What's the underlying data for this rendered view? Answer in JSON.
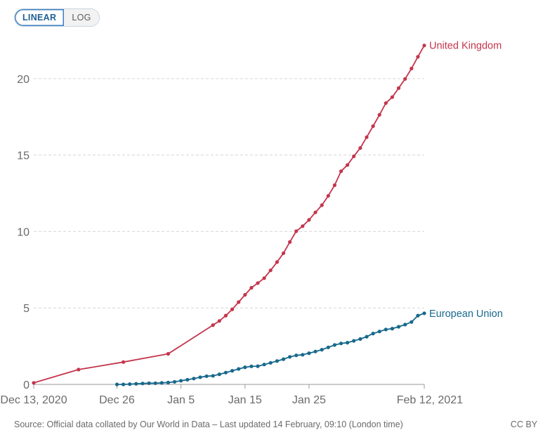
{
  "controls": {
    "linear_label": "LINEAR",
    "log_label": "LOG",
    "active": "linear"
  },
  "chart_data": {
    "type": "line",
    "title": "",
    "xlabel": "",
    "ylabel": "",
    "scale": "linear",
    "grid": "horizontal dashed",
    "ylim": [
      0,
      22.2
    ],
    "yticks": [
      0,
      5,
      10,
      15,
      20
    ],
    "xlim": [
      "2020-12-13",
      "2021-02-12"
    ],
    "xticks": [
      {
        "date": "2020-12-13",
        "label": "Dec 13, 2020"
      },
      {
        "date": "2020-12-26",
        "label": "Dec 26"
      },
      {
        "date": "2021-01-05",
        "label": "Jan 5"
      },
      {
        "date": "2021-01-15",
        "label": "Jan 15"
      },
      {
        "date": "2021-01-25",
        "label": "Jan 25"
      },
      {
        "date": "2021-02-12",
        "label": "Feb 12, 2021"
      }
    ],
    "series": [
      {
        "name": "United Kingdom",
        "color": "#c4354c",
        "points": [
          [
            "2020-12-13",
            0.1
          ],
          [
            "2020-12-20",
            0.97
          ],
          [
            "2020-12-27",
            1.46
          ],
          [
            "2021-01-03",
            2.0
          ],
          [
            "2021-01-10",
            3.88
          ],
          [
            "2021-01-11",
            4.15
          ],
          [
            "2021-01-12",
            4.5
          ],
          [
            "2021-01-13",
            4.91
          ],
          [
            "2021-01-14",
            5.38
          ],
          [
            "2021-01-15",
            5.86
          ],
          [
            "2021-01-16",
            6.32
          ],
          [
            "2021-01-17",
            6.63
          ],
          [
            "2021-01-18",
            6.95
          ],
          [
            "2021-01-19",
            7.46
          ],
          [
            "2021-01-20",
            8.0
          ],
          [
            "2021-01-21",
            8.58
          ],
          [
            "2021-01-22",
            9.31
          ],
          [
            "2021-01-23",
            10.02
          ],
          [
            "2021-01-24",
            10.35
          ],
          [
            "2021-01-25",
            10.76
          ],
          [
            "2021-01-26",
            11.25
          ],
          [
            "2021-01-27",
            11.72
          ],
          [
            "2021-01-28",
            12.33
          ],
          [
            "2021-01-29",
            13.03
          ],
          [
            "2021-01-30",
            13.94
          ],
          [
            "2021-01-31",
            14.35
          ],
          [
            "2021-02-01",
            14.92
          ],
          [
            "2021-02-02",
            15.46
          ],
          [
            "2021-02-03",
            16.17
          ],
          [
            "2021-02-04",
            16.89
          ],
          [
            "2021-02-05",
            17.63
          ],
          [
            "2021-02-06",
            18.4
          ],
          [
            "2021-02-07",
            18.79
          ],
          [
            "2021-02-08",
            19.38
          ],
          [
            "2021-02-09",
            19.98
          ],
          [
            "2021-02-10",
            20.66
          ],
          [
            "2021-02-11",
            21.43
          ],
          [
            "2021-02-12",
            22.17
          ]
        ]
      },
      {
        "name": "European Union",
        "color": "#18698c",
        "points": [
          [
            "2020-12-26",
            0.0
          ],
          [
            "2020-12-27",
            0.0
          ],
          [
            "2020-12-28",
            0.02
          ],
          [
            "2020-12-29",
            0.04
          ],
          [
            "2020-12-30",
            0.06
          ],
          [
            "2020-12-31",
            0.08
          ],
          [
            "2021-01-01",
            0.08
          ],
          [
            "2021-01-02",
            0.1
          ],
          [
            "2021-01-03",
            0.12
          ],
          [
            "2021-01-04",
            0.17
          ],
          [
            "2021-01-05",
            0.24
          ],
          [
            "2021-01-06",
            0.31
          ],
          [
            "2021-01-07",
            0.38
          ],
          [
            "2021-01-08",
            0.47
          ],
          [
            "2021-01-09",
            0.54
          ],
          [
            "2021-01-10",
            0.56
          ],
          [
            "2021-01-11",
            0.66
          ],
          [
            "2021-01-12",
            0.77
          ],
          [
            "2021-01-13",
            0.89
          ],
          [
            "2021-01-14",
            1.01
          ],
          [
            "2021-01-15",
            1.12
          ],
          [
            "2021-01-16",
            1.18
          ],
          [
            "2021-01-17",
            1.19
          ],
          [
            "2021-01-18",
            1.3
          ],
          [
            "2021-01-19",
            1.41
          ],
          [
            "2021-01-20",
            1.53
          ],
          [
            "2021-01-21",
            1.65
          ],
          [
            "2021-01-22",
            1.8
          ],
          [
            "2021-01-23",
            1.9
          ],
          [
            "2021-01-24",
            1.94
          ],
          [
            "2021-01-25",
            2.04
          ],
          [
            "2021-01-26",
            2.15
          ],
          [
            "2021-01-27",
            2.27
          ],
          [
            "2021-01-28",
            2.42
          ],
          [
            "2021-01-29",
            2.58
          ],
          [
            "2021-01-30",
            2.68
          ],
          [
            "2021-01-31",
            2.73
          ],
          [
            "2021-02-01",
            2.85
          ],
          [
            "2021-02-02",
            2.97
          ],
          [
            "2021-02-03",
            3.12
          ],
          [
            "2021-02-04",
            3.33
          ],
          [
            "2021-02-05",
            3.46
          ],
          [
            "2021-02-06",
            3.59
          ],
          [
            "2021-02-07",
            3.65
          ],
          [
            "2021-02-08",
            3.77
          ],
          [
            "2021-02-09",
            3.91
          ],
          [
            "2021-02-10",
            4.08
          ],
          [
            "2021-02-11",
            4.5
          ],
          [
            "2021-02-12",
            4.65
          ]
        ]
      }
    ]
  },
  "footer": {
    "source": "Source: Official data collated by Our World in Data – Last updated 14 February, 09:10 (London time)",
    "license": "CC BY"
  }
}
